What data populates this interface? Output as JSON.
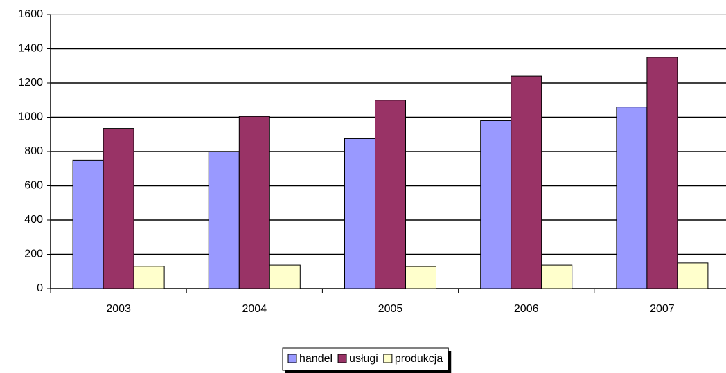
{
  "chart_data": {
    "type": "bar",
    "categories": [
      "2003",
      "2004",
      "2005",
      "2006",
      "2007"
    ],
    "series": [
      {
        "name": "handel",
        "color": "#9999ff",
        "values": [
          750,
          800,
          875,
          980,
          1060
        ]
      },
      {
        "name": "usługi",
        "color": "#993366",
        "values": [
          935,
          1005,
          1100,
          1240,
          1350
        ]
      },
      {
        "name": "produkcja",
        "color": "#ffffcc",
        "values": [
          130,
          137,
          129,
          137,
          150
        ]
      }
    ],
    "ylim": [
      0,
      1600
    ],
    "yticks": [
      0,
      200,
      400,
      600,
      800,
      1000,
      1200,
      1400,
      1600
    ],
    "grid": true,
    "legend": "bottom"
  }
}
